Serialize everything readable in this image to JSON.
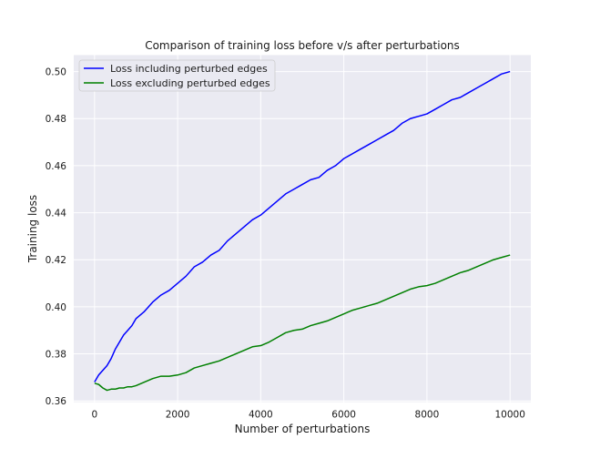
{
  "chart_data": {
    "type": "line",
    "title": "Comparison of training loss before v/s after perturbations",
    "xlabel": "Number of perturbations",
    "ylabel": "Training loss",
    "xlim": [
      -500,
      10500
    ],
    "ylim": [
      0.3595,
      0.507
    ],
    "xticks": [
      0,
      2000,
      4000,
      6000,
      8000,
      10000
    ],
    "xtick_labels": [
      "0",
      "2000",
      "4000",
      "6000",
      "8000",
      "10000"
    ],
    "yticks": [
      0.36,
      0.38,
      0.4,
      0.42,
      0.44,
      0.46,
      0.48,
      0.5
    ],
    "ytick_labels": [
      "0.36",
      "0.38",
      "0.40",
      "0.42",
      "0.44",
      "0.46",
      "0.48",
      "0.50"
    ],
    "grid": true,
    "legend_position": "top-left",
    "series": [
      {
        "name": "Loss including perturbed edges",
        "color": "#0000ff",
        "x": [
          0,
          100,
          200,
          300,
          400,
          500,
          600,
          700,
          800,
          900,
          1000,
          1200,
          1400,
          1600,
          1800,
          2000,
          2200,
          2400,
          2600,
          2800,
          3000,
          3200,
          3400,
          3600,
          3800,
          4000,
          4200,
          4400,
          4600,
          4800,
          5000,
          5200,
          5400,
          5600,
          5800,
          6000,
          6200,
          6400,
          6600,
          6800,
          7000,
          7200,
          7400,
          7600,
          7800,
          8000,
          8200,
          8400,
          8600,
          8800,
          9000,
          9200,
          9400,
          9600,
          9800,
          10000
        ],
        "y": [
          0.368,
          0.371,
          0.373,
          0.375,
          0.378,
          0.382,
          0.385,
          0.388,
          0.39,
          0.392,
          0.395,
          0.398,
          0.402,
          0.405,
          0.407,
          0.41,
          0.413,
          0.417,
          0.419,
          0.422,
          0.424,
          0.428,
          0.431,
          0.434,
          0.437,
          0.439,
          0.442,
          0.445,
          0.448,
          0.45,
          0.452,
          0.454,
          0.455,
          0.458,
          0.46,
          0.463,
          0.465,
          0.467,
          0.469,
          0.471,
          0.473,
          0.475,
          0.478,
          0.48,
          0.481,
          0.482,
          0.484,
          0.486,
          0.488,
          0.489,
          0.491,
          0.493,
          0.495,
          0.497,
          0.499,
          0.5
        ]
      },
      {
        "name": "Loss excluding perturbed edges",
        "color": "#008000",
        "x": [
          0,
          100,
          200,
          300,
          400,
          500,
          600,
          700,
          800,
          900,
          1000,
          1200,
          1400,
          1600,
          1800,
          2000,
          2200,
          2400,
          2600,
          2800,
          3000,
          3200,
          3400,
          3600,
          3800,
          4000,
          4200,
          4400,
          4600,
          4800,
          5000,
          5200,
          5400,
          5600,
          5800,
          6000,
          6200,
          6400,
          6600,
          6800,
          7000,
          7200,
          7400,
          7600,
          7800,
          8000,
          8200,
          8400,
          8600,
          8800,
          9000,
          9200,
          9400,
          9600,
          9800,
          10000
        ],
        "y": [
          0.3675,
          0.367,
          0.3655,
          0.3645,
          0.365,
          0.365,
          0.3655,
          0.3655,
          0.366,
          0.366,
          0.3665,
          0.368,
          0.3695,
          0.3705,
          0.3705,
          0.371,
          0.372,
          0.374,
          0.375,
          0.376,
          0.377,
          0.3785,
          0.38,
          0.3815,
          0.383,
          0.3835,
          0.385,
          0.387,
          0.389,
          0.39,
          0.3905,
          0.392,
          0.393,
          0.394,
          0.3955,
          0.397,
          0.3985,
          0.3995,
          0.4005,
          0.4015,
          0.403,
          0.4045,
          0.406,
          0.4075,
          0.4085,
          0.409,
          0.41,
          0.4115,
          0.413,
          0.4145,
          0.4155,
          0.417,
          0.4185,
          0.42,
          0.421,
          0.422
        ]
      }
    ]
  }
}
